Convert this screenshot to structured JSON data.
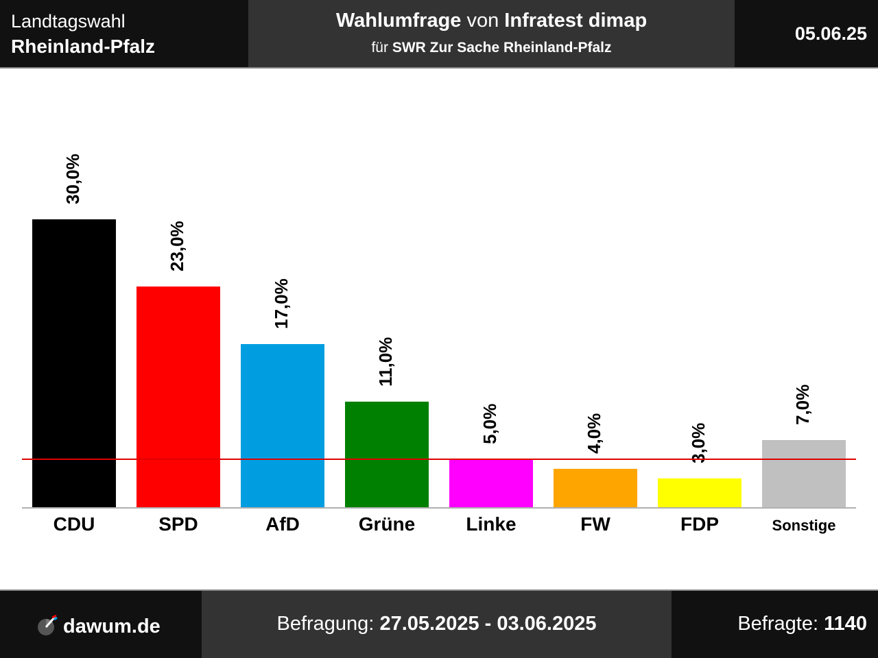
{
  "header": {
    "election_type": "Landtagswahl",
    "state": "Rheinland-Pfalz",
    "title_bold1": "Wahlumfrage",
    "title_mid": " von ",
    "title_bold2": "Infratest dimap",
    "subtitle_prefix": "für ",
    "subtitle_bold": "SWR Zur Sache Rheinland-Pfalz",
    "date": "05.06.25"
  },
  "footer": {
    "site": "dawum.de",
    "survey_label": "Befragung: ",
    "survey_period": "27.05.2025 - 03.06.2025",
    "respondents_label": "Befragte: ",
    "respondents": "1140",
    "logo_icon": "dawum-logo-icon"
  },
  "chart_data": {
    "type": "bar",
    "categories": [
      "CDU",
      "SPD",
      "AfD",
      "Grüne",
      "Linke",
      "FW",
      "FDP",
      "Sonstige"
    ],
    "values": [
      30.0,
      23.0,
      17.0,
      11.0,
      5.0,
      4.0,
      3.0,
      7.0
    ],
    "value_labels": [
      "30,0%",
      "23,0%",
      "17,0%",
      "11,0%",
      "5,0%",
      "4,0%",
      "3,0%",
      "7,0%"
    ],
    "colors": [
      "#000000",
      "#ff0000",
      "#009ee0",
      "#008000",
      "#ff00ff",
      "#ffa500",
      "#ffff00",
      "#c0c0c0"
    ],
    "threshold": 5.0,
    "threshold_color": "#e00000",
    "ylim": [
      0,
      30
    ]
  }
}
